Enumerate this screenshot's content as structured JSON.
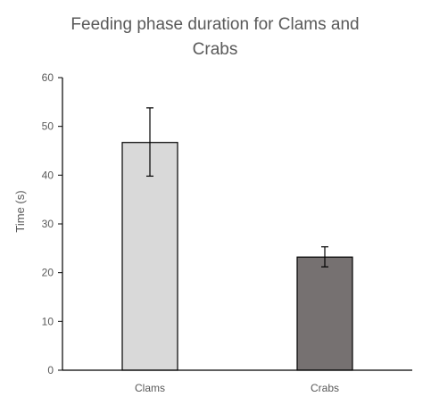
{
  "chart_data": {
    "type": "bar",
    "title_lines": [
      "Feeding phase duration for Clams and",
      "Crabs"
    ],
    "xlabel": "",
    "ylabel": "Time (s)",
    "categories": [
      "Clams",
      "Crabs"
    ],
    "values": [
      46.7,
      23.2
    ],
    "error_low": [
      39.8,
      21.2
    ],
    "error_high": [
      53.8,
      25.3
    ],
    "bar_colors": [
      "#d9d9d9",
      "#767171"
    ],
    "bar_outline_color": "#000000",
    "axis_color": "#000000",
    "ylim": [
      0,
      60
    ],
    "yticks": [
      "0",
      "10",
      "20",
      "30",
      "40",
      "50",
      "60"
    ],
    "grid": false,
    "legend": "none"
  }
}
